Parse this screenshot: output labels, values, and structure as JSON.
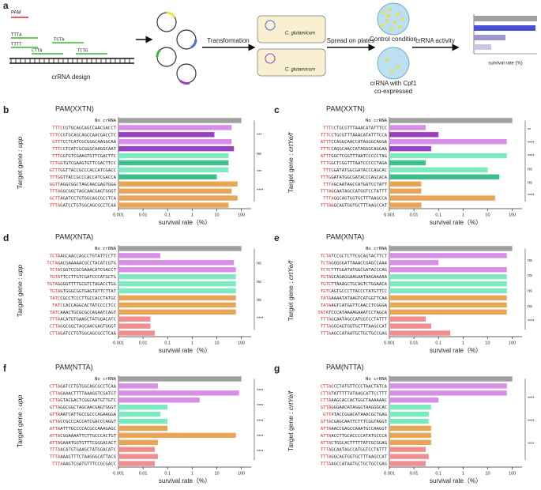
{
  "schematic": {
    "panel": "a",
    "pam": "PAM",
    "seq_labels": [
      "TTTA",
      "CTTA",
      "TGTA",
      "TTTT",
      "TCTG"
    ],
    "caption": "crRNA design",
    "step1": "Transformation",
    "organism": [
      "C. glutamicum",
      "C. glutamicum"
    ],
    "step2": "Spread on plates",
    "control": "Control condition",
    "treatment": [
      "crRNA with Cpf1",
      "co-expressed"
    ],
    "step3": "crRNA activity",
    "mini_axis": "survival rate (%)"
  },
  "chart_data": [
    {
      "type": "bar",
      "panel": "b",
      "title": "PAM(XXTN)",
      "ylabel": "Target gene : ",
      "gene": "upp",
      "xlabel": "survival rate（%）",
      "log": true,
      "xlim": [
        0.001,
        250
      ],
      "xticks": [
        0.001,
        0.01,
        0.1,
        1,
        10,
        100
      ],
      "categories": [
        "No crRNA",
        "TTTCCGTGCAGCAGCCAACGACCT",
        "TTTCCGTGCAGCAGCCAACGACCTC",
        "GTTTCCTCATCGCGGGCAAGGCAA",
        "TTTCCTCATCGCGGGCAAGGCAAT",
        "TTTGGTGTCGAAGTGTTCGACTTC",
        "TTTGGTGTCGAAGTGTTCGACTTCC",
        "GTTTGGTTACCGCCCACCATCGACC",
        "TTTGGTTACCGCCCACCATCGACCA",
        "GGTTAGGCGGCTAGCAACGAGTGGG",
        "TTTAGGCGGCTAGCAACGAGTGGGT",
        "GCTTAGATCCTGTGGCAGCGCCTCA",
        "TTTAGATCCTGTGGCAGCGCCTCAA"
      ],
      "values": [
        100,
        40,
        8,
        40,
        50,
        30,
        30,
        30,
        10,
        70,
        40,
        70,
        30
      ],
      "colors": [
        "#a0a0a0",
        "#d88ee8",
        "#9a3fbf",
        "#d88ee8",
        "#9a3fbf",
        "#7ee8c0",
        "#3dbf8c",
        "#7ee8c0",
        "#3dbf8c",
        "#e8a457",
        "#e8a457",
        "#e8a457",
        "#e8a457"
      ],
      "annotations": [
        "***",
        "ns",
        "***",
        "****"
      ]
    },
    {
      "type": "bar",
      "panel": "c",
      "title": "PAM(XXTN)",
      "ylabel": "Target gene : ",
      "gene": "crtYe/f",
      "xlabel": "survival rate（%）",
      "log": true,
      "xlim": [
        0.001,
        250
      ],
      "xticks": [
        0.001,
        0.01,
        0.1,
        1,
        10,
        100
      ],
      "categories": [
        "No crRNA",
        "TTTCCTGCGTTTAAACATATTTCC",
        "TTTCCTGCGTTTAAACATATTTCCA",
        "ATTTCCAGGCAACCATAGGGCAGGA",
        "TTTCCAGGCAACCATAGGGCAGGAA",
        "ATTTGGCTCGGTTTAATCCCCCTAG",
        "TTTGGCTCGGTTTAATCCCCCTAGA",
        "TTTGGATATGGCGATACCCAGCAC",
        "TTTGGATATGGCGATACCCAGCACA",
        "TTTAGCAATAGCCATGGTCCTATT",
        "TTTAGCAATAGCCATGGTCCTATTT",
        "TTTAGGCAGTGGTGCTTTAAGCCA",
        "TTTAGGCAGTGGTGCTTTAAGCCAT"
      ],
      "values": [
        100,
        0.03,
        0.1,
        60,
        0.05,
        60,
        0.03,
        10,
        30,
        0.02,
        0.02,
        20,
        0.02
      ],
      "colors": [
        "#a0a0a0",
        "#d88ee8",
        "#9a3fbf",
        "#d88ee8",
        "#9a3fbf",
        "#7ee8c0",
        "#3dbf8c",
        "#7ee8c0",
        "#3dbf8c",
        "#e8a457",
        "#e8a457",
        "#e8a457",
        "#e8a457"
      ],
      "annotations": [
        "**",
        "****",
        "****",
        "ns",
        "ns",
        "****"
      ]
    },
    {
      "type": "bar",
      "panel": "d",
      "title": "PAM(XNTA)",
      "ylabel": "Target gene : ",
      "gene": "upp",
      "xlabel": "survival rate（%）",
      "log": true,
      "xlim": [
        0.001,
        250
      ],
      "xticks": [
        0.001,
        0.01,
        0.1,
        1,
        10,
        100
      ],
      "categories": [
        "No crRNA",
        "TCTAAGCAACCAGCCTGTATTCCTT",
        "TCTAGACGAAAAACGCCTACATCGTG",
        "TCTACGGTCCGCGAAACATCGACCT",
        "TGTATTCCTTGTCGATCCCATGCTG",
        "TGTAGGGGTTTTGCGTCTAGACCTGG",
        "TGTAGTGGGCGGTGAGTATTCTTAT",
        "TATCCGCCTCCCTTGCCACCTATGC",
        "TATCCACCAGGCACTATCCCCTCC",
        "TATCAAACTGCGCGCCAGAATCAGT",
        "TTTAACATGTGAAGCTATGGACATC",
        "CTTAGGCGGCTAGCAACGAGTGGGT",
        "CTTAGATCCTGTGGCAGCGCCTCAA"
      ],
      "values": [
        100,
        0.05,
        50,
        60,
        60,
        60,
        60,
        60,
        60,
        60,
        0.02,
        0.02,
        0.03
      ],
      "colors": [
        "#a0a0a0",
        "#d88ee8",
        "#d88ee8",
        "#d88ee8",
        "#7ee8c0",
        "#7ee8c0",
        "#7ee8c0",
        "#e8a457",
        "#e8a457",
        "#e8a457",
        "#ef8f8f",
        "#ef8f8f",
        "#ef8f8f"
      ],
      "annotations": [
        "ns",
        "ns",
        "ns",
        "****"
      ]
    },
    {
      "type": "bar",
      "panel": "e",
      "title": "PAM(XNTA)",
      "ylabel": "Target gene : ",
      "gene": "crtYe/f",
      "xlabel": "survival rate（%）",
      "log": true,
      "xlim": [
        0.001,
        250
      ],
      "xticks": [
        0.001,
        0.01,
        0.1,
        1,
        10,
        100
      ],
      "categories": [
        "No crRNA",
        "TCTATCCGCTCTTCGCAGTACTTCT",
        "TCTAGGGGGATTAAACCGAGCCAAA",
        "TCTCTTTGGATATGGCGATACCCAG",
        "TGTAGCAGAGGAAGAATAAGAAAAA",
        "TGTCTTAAAGCTGCAGTCTGGAACA",
        "TGTCAGTGCCCTTACCCTATGTTCC",
        "TATAAAAATATAAGTCATGGTTCAA",
        "TATAAGTCATGGTTCAACCTCGGGA",
        "TATATCCCATAAAAGAAATCCTAGCA",
        "TTTAGCAATAGCCATGGTCCTATTT",
        "TTTAGGCAGTGGTGCTTTAAGCCAT",
        "TTTAAGCCATAATGCTGCTGCCGAG"
      ],
      "values": [
        100,
        60,
        0.1,
        60,
        60,
        60,
        60,
        60,
        60,
        60,
        0.03,
        0.05,
        0.3
      ],
      "colors": [
        "#a0a0a0",
        "#d88ee8",
        "#d88ee8",
        "#d88ee8",
        "#7ee8c0",
        "#7ee8c0",
        "#7ee8c0",
        "#e8a457",
        "#e8a457",
        "#e8a457",
        "#ef8f8f",
        "#ef8f8f",
        "#ef8f8f"
      ],
      "annotations": [
        "ns",
        "ns",
        "ns",
        "ns",
        "****"
      ]
    },
    {
      "type": "bar",
      "panel": "f",
      "title": "PAM(NTTA)",
      "ylabel": "Target gene : ",
      "gene": "upp",
      "xlabel": "survival rate（%）",
      "log": true,
      "xlim": [
        0.001,
        250
      ],
      "xticks": [
        0.001,
        0.01,
        0.1,
        1,
        10,
        100
      ],
      "categories": [
        "No crRNA",
        "CTTAGATCCTGTGGCAGCGCCTCAA",
        "CTTAGAAACTTTTAAAGGTCGATGT",
        "CTTAGTACGACTCGGCAATGTTGTC",
        "GTTAGGCGGCTAGCAACGAGTGGGT",
        "GTTAAATCATTGCCGCCCAGAAGGA",
        "GTTACCGCCCACCATCGACCCAGGT",
        "ATTAATTTGCCCCACGCCAAAGAGC",
        "ATTACGGAAAATTCTTGCCCACTGT",
        "ATTAGAAATGGTGTTTCGGGACACT",
        "TTTAACATGTGAAGCTATGGACATC",
        "TTTAAAAGTTTCTAAGGGCATTACG",
        "TTTAAAGTCGATGTTTCCGCGACC"
      ],
      "values": [
        100,
        0.04,
        80,
        2,
        0.1,
        0.05,
        0.1,
        0.1,
        60,
        0.04,
        0.03,
        0.04,
        0.03
      ],
      "colors": [
        "#a0a0a0",
        "#d88ee8",
        "#d88ee8",
        "#d88ee8",
        "#7ee8c0",
        "#7ee8c0",
        "#7ee8c0",
        "#e8a457",
        "#e8a457",
        "#e8a457",
        "#ef8f8f",
        "#ef8f8f",
        "#ef8f8f"
      ],
      "annotations": [
        "****",
        "****",
        "****",
        "****",
        "****"
      ]
    },
    {
      "type": "bar",
      "panel": "g",
      "title": "PAM(NTTA)",
      "ylabel": "Target gene : ",
      "gene": "crtYe/f",
      "xlabel": "survival rate（%）",
      "log": true,
      "xlim": [
        0.001,
        250
      ],
      "xticks": [
        0.001,
        0.01,
        0.1,
        1,
        10,
        100
      ],
      "categories": [
        "No crRNA",
        "CTTACCCTATGTTCCCTAACTATCA",
        "CTTATATTTTTATAAGCATTCCTTT",
        "CTTAAAGCACCACTGGCTAAAAAAC",
        "GTTAGGGAACATAGGGTAAGGGCAC",
        "GTTATACCGGACATAAACGCTGAG",
        "GTTACGAGCAATTCTTTCGGTAGGT",
        "ATTAAACCGAGCCAAATGCCAAGGT",
        "ATTAACCTTGCACCCCATATGCCCA",
        "ATTACTGGCACTTTTTATCGCGGAG",
        "TTTAGCAATAGCCATGGTCCTATTT",
        "TTTAGGCAGTGGTGCTTTAAGCCAT",
        "TTTAAGCCATAATGCTGCTGCCGAG"
      ],
      "values": [
        100,
        60,
        60,
        0.1,
        0.05,
        0.04,
        0.04,
        0.05,
        0.05,
        0.05,
        0.03,
        0.04,
        0.03
      ],
      "colors": [
        "#a0a0a0",
        "#d88ee8",
        "#d88ee8",
        "#d88ee8",
        "#7ee8c0",
        "#7ee8c0",
        "#7ee8c0",
        "#e8a457",
        "#e8a457",
        "#e8a457",
        "#ef8f8f",
        "#ef8f8f",
        "#ef8f8f"
      ],
      "annotations": [
        "****",
        "****",
        "****"
      ]
    }
  ]
}
